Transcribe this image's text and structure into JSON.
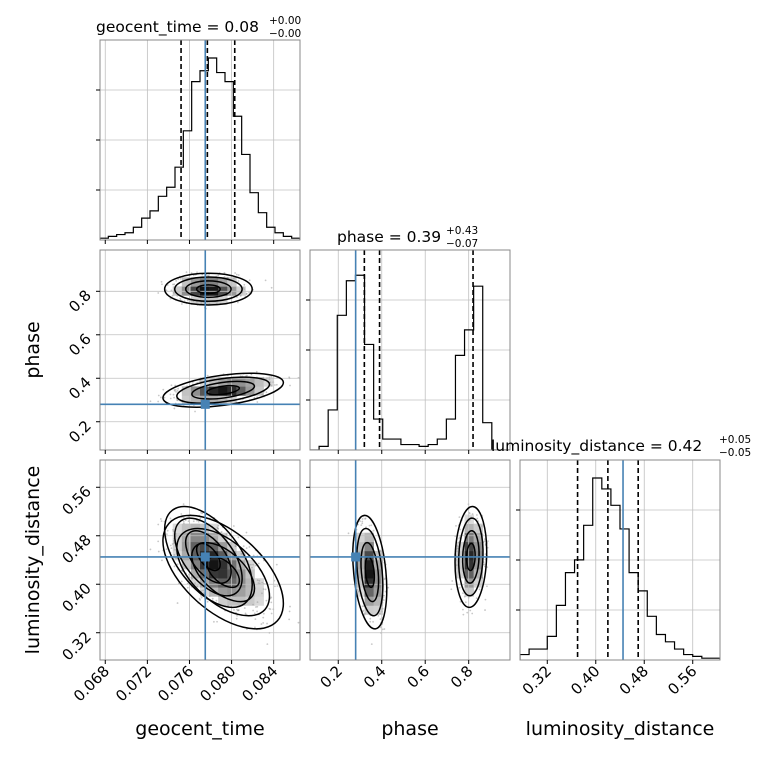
{
  "colors": {
    "truth": "#4682b4",
    "hist": "#000000",
    "grid": "#c0c0c0",
    "frame": "#888888"
  },
  "chart_data": {
    "type": "corner",
    "parameters": [
      "geocent_time",
      "phase",
      "luminosity_distance"
    ],
    "truths": {
      "geocent_time": 0.0775,
      "phase": 0.28,
      "luminosity_distance": 0.445
    },
    "ranges": {
      "geocent_time": [
        0.0675,
        0.0865
      ],
      "phase": [
        0.07,
        0.99
      ],
      "luminosity_distance": [
        0.275,
        0.605
      ]
    },
    "ticks": {
      "geocent_time": [
        "0.068",
        "0.072",
        "0.076",
        "0.080",
        "0.084"
      ],
      "phase": [
        "0.2",
        "0.4",
        "0.6",
        "0.8"
      ],
      "luminosity_distance": [
        "0.32",
        "0.40",
        "0.48",
        "0.56"
      ]
    },
    "titles": {
      "geocent_time": {
        "main": "geocent_time = 0.08",
        "sup": "+0.00",
        "sub": "−0.00"
      },
      "phase": {
        "main": "phase = 0.39",
        "sup": "+0.43",
        "sub": "−0.07"
      },
      "luminosity_distance": {
        "main": "luminosity_distance = 0.42",
        "sup": "+0.05",
        "sub": "−0.05"
      }
    },
    "quantiles": {
      "geocent_time": [
        0.0752,
        0.0777,
        0.0803
      ],
      "phase": [
        0.32,
        0.39,
        0.82
      ],
      "luminosity_distance": [
        0.37,
        0.42,
        0.47
      ]
    },
    "histograms": {
      "geocent_time": [
        0.01,
        0.02,
        0.03,
        0.04,
        0.07,
        0.12,
        0.16,
        0.24,
        0.29,
        0.4,
        0.6,
        0.87,
        0.93,
        1.0,
        0.92,
        0.87,
        0.68,
        0.47,
        0.26,
        0.15,
        0.07,
        0.04,
        0.02,
        0.01
      ],
      "phase": [
        0.0,
        0.02,
        0.22,
        0.74,
        0.93,
        0.96,
        0.58,
        0.17,
        0.06,
        0.06,
        0.03,
        0.03,
        0.02,
        0.03,
        0.06,
        0.17,
        0.52,
        0.66,
        0.9,
        0.15,
        0.0,
        0.0
      ],
      "luminosity_distance": [
        0.03,
        0.06,
        0.06,
        0.13,
        0.3,
        0.48,
        0.55,
        0.74,
        1.0,
        0.94,
        0.85,
        0.72,
        0.48,
        0.38,
        0.24,
        0.14,
        0.1,
        0.06,
        0.03,
        0.02,
        0.01,
        0.01
      ]
    },
    "modes": [
      {
        "geocent_time": 0.0778,
        "phase": 0.81,
        "luminosity_distance": 0.445,
        "sx": 0.0016,
        "sy": 0.028,
        "sz": 0.032,
        "rho_tp": 0.0,
        "rho_td": -0.55,
        "rho_pd": 0.1,
        "weight": 0.45
      },
      {
        "geocent_time": 0.0792,
        "phase": 0.345,
        "luminosity_distance": 0.42,
        "sx": 0.0022,
        "sy": 0.03,
        "sz": 0.036,
        "rho_tp": 0.45,
        "rho_td": -0.55,
        "rho_pd": -0.3,
        "weight": 0.55
      }
    ]
  }
}
